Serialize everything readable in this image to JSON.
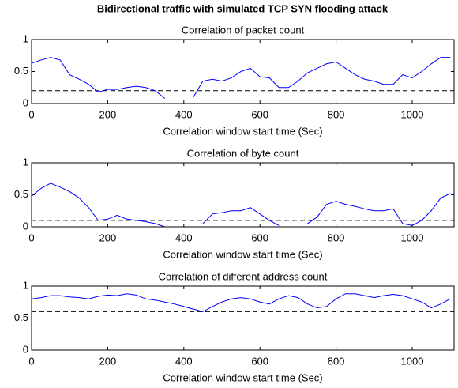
{
  "title": "Bidirectional traffic with simulated TCP SYN flooding attack",
  "chart_data": [
    {
      "type": "line",
      "title": "Correlation of packet count",
      "xlabel": "Correlation window start time (Sec)",
      "xlim": [
        0,
        1110
      ],
      "ylim": [
        0,
        1
      ],
      "xticks": [
        0,
        200,
        400,
        600,
        800,
        1000
      ],
      "yticks": [
        0,
        0.5,
        1
      ],
      "threshold": 0.2,
      "x": [
        0,
        25,
        50,
        75,
        100,
        125,
        150,
        175,
        200,
        225,
        250,
        275,
        300,
        325,
        350,
        375,
        400,
        425,
        450,
        475,
        500,
        525,
        550,
        575,
        600,
        625,
        650,
        675,
        700,
        725,
        750,
        775,
        800,
        825,
        850,
        875,
        900,
        925,
        950,
        975,
        1000,
        1025,
        1050,
        1075,
        1100
      ],
      "series": [
        {
          "color": "#0000ff",
          "values": [
            0.63,
            0.68,
            0.72,
            0.68,
            0.45,
            0.38,
            0.3,
            0.18,
            0.22,
            0.22,
            0.25,
            0.27,
            0.25,
            0.2,
            0.08,
            null,
            null,
            0.1,
            0.35,
            0.38,
            0.35,
            0.4,
            0.5,
            0.55,
            0.42,
            0.4,
            0.25,
            0.25,
            0.35,
            0.48,
            0.55,
            0.62,
            0.65,
            0.55,
            0.45,
            0.38,
            0.35,
            0.3,
            0.3,
            0.45,
            0.4,
            0.5,
            0.62,
            0.72,
            0.72
          ]
        }
      ]
    },
    {
      "type": "line",
      "title": "Correlation of byte count",
      "xlabel": "Correlation window start time (Sec)",
      "xlim": [
        0,
        1110
      ],
      "ylim": [
        0,
        1
      ],
      "xticks": [
        0,
        200,
        400,
        600,
        800,
        1000
      ],
      "yticks": [
        0,
        0.5,
        1
      ],
      "threshold": 0.1,
      "x": [
        0,
        25,
        50,
        75,
        100,
        125,
        150,
        175,
        200,
        225,
        250,
        275,
        300,
        325,
        350,
        375,
        400,
        425,
        450,
        475,
        500,
        525,
        550,
        575,
        600,
        625,
        650,
        675,
        700,
        725,
        750,
        775,
        800,
        825,
        850,
        875,
        900,
        925,
        950,
        975,
        1000,
        1025,
        1050,
        1075,
        1100
      ],
      "series": [
        {
          "color": "#0000ff",
          "values": [
            0.48,
            0.6,
            0.68,
            0.62,
            0.55,
            0.45,
            0.3,
            0.1,
            0.12,
            0.18,
            0.12,
            0.1,
            0.08,
            0.05,
            0.0,
            null,
            null,
            null,
            0.05,
            0.2,
            0.22,
            0.25,
            0.25,
            0.3,
            0.2,
            0.1,
            0.02,
            null,
            null,
            0.05,
            0.15,
            0.35,
            0.4,
            0.35,
            0.32,
            0.28,
            0.25,
            0.25,
            0.28,
            0.05,
            0.02,
            0.1,
            0.25,
            0.45,
            0.52
          ]
        }
      ]
    },
    {
      "type": "line",
      "title": "Correlation of different address count",
      "xlabel": "Correlation window start time (Sec)",
      "xlim": [
        0,
        1110
      ],
      "ylim": [
        0,
        1
      ],
      "xticks": [
        0,
        200,
        400,
        600,
        800,
        1000
      ],
      "yticks": [
        0,
        0.5,
        1
      ],
      "threshold": 0.6,
      "x": [
        0,
        25,
        50,
        75,
        100,
        125,
        150,
        175,
        200,
        225,
        250,
        275,
        300,
        325,
        350,
        375,
        400,
        425,
        450,
        475,
        500,
        525,
        550,
        575,
        600,
        625,
        650,
        675,
        700,
        725,
        750,
        775,
        800,
        825,
        850,
        875,
        900,
        925,
        950,
        975,
        1000,
        1025,
        1050,
        1075,
        1100
      ],
      "series": [
        {
          "color": "#0000ff",
          "values": [
            0.8,
            0.82,
            0.85,
            0.85,
            0.83,
            0.82,
            0.8,
            0.84,
            0.86,
            0.85,
            0.88,
            0.86,
            0.8,
            0.78,
            0.75,
            0.72,
            0.68,
            0.64,
            0.6,
            0.68,
            0.75,
            0.8,
            0.82,
            0.8,
            0.75,
            0.72,
            0.8,
            0.85,
            0.82,
            0.72,
            0.66,
            0.68,
            0.8,
            0.88,
            0.88,
            0.85,
            0.82,
            0.85,
            0.87,
            0.85,
            0.8,
            0.75,
            0.66,
            0.72,
            0.8
          ]
        }
      ]
    }
  ]
}
